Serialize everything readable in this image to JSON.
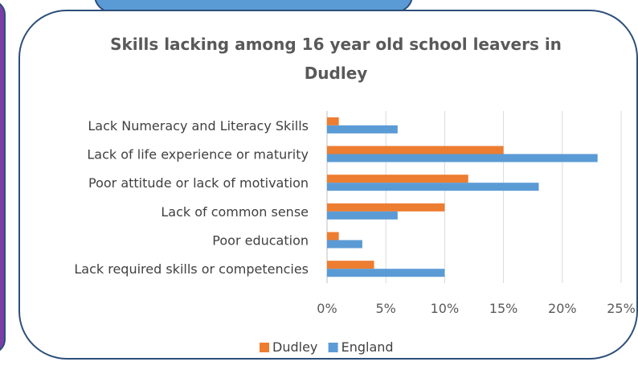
{
  "chart_data": {
    "type": "bar",
    "orientation": "horizontal",
    "title_lines": [
      "Skills lacking among 16 year old school leavers in",
      "Dudley"
    ],
    "categories": [
      "Lack Numeracy and Literacy Skills",
      "Lack of life experience or maturity",
      "Poor attitude or lack of motivation",
      "Lack of common sense",
      "Poor education",
      "Lack required skills or competencies"
    ],
    "series": [
      {
        "name": "Dudley",
        "color": "#ed7d31",
        "values": [
          1,
          15,
          12,
          10,
          1,
          4
        ]
      },
      {
        "name": "England",
        "color": "#5b9bd5",
        "values": [
          6,
          23,
          18,
          6,
          3,
          10
        ]
      }
    ],
    "xlim": [
      0,
      25
    ],
    "x_ticks": [
      0,
      5,
      10,
      15,
      20,
      25
    ],
    "x_tick_labels": [
      "0%",
      "5%",
      "10%",
      "15%",
      "20%",
      "25%"
    ],
    "xlabel": "",
    "ylabel": "",
    "grid": "vertical",
    "legend": "bottom"
  }
}
